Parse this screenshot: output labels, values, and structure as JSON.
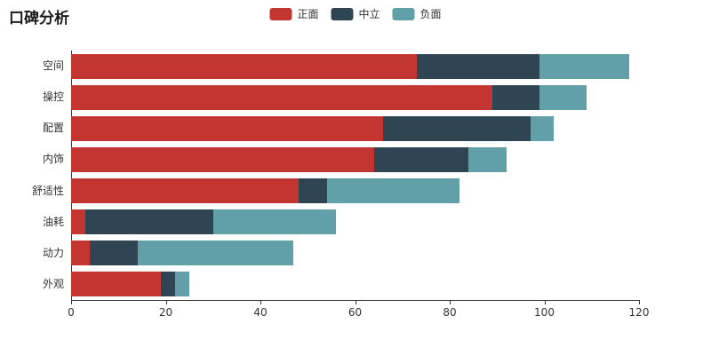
{
  "chart_data": {
    "type": "bar",
    "orientation": "horizontal",
    "stacked": true,
    "title": "口碑分析",
    "categories": [
      "空间",
      "操控",
      "配置",
      "内饰",
      "舒适性",
      "油耗",
      "动力",
      "外观"
    ],
    "series": [
      {
        "name": "正面",
        "color": "#c23531",
        "values": [
          73,
          89,
          66,
          64,
          48,
          3,
          4,
          19
        ]
      },
      {
        "name": "中立",
        "color": "#2f4554",
        "values": [
          26,
          10,
          31,
          20,
          6,
          27,
          10,
          3
        ]
      },
      {
        "name": "负面",
        "color": "#61a0a8",
        "values": [
          19,
          10,
          5,
          8,
          28,
          26,
          33,
          3
        ]
      }
    ],
    "xlabel": "",
    "ylabel": "",
    "xlim": [
      0,
      120
    ],
    "xticks": [
      0,
      20,
      40,
      60,
      80,
      100,
      120
    ],
    "legend_position": "top-center",
    "grid": false,
    "axis_color": "#333333",
    "background": "#ffffff"
  }
}
